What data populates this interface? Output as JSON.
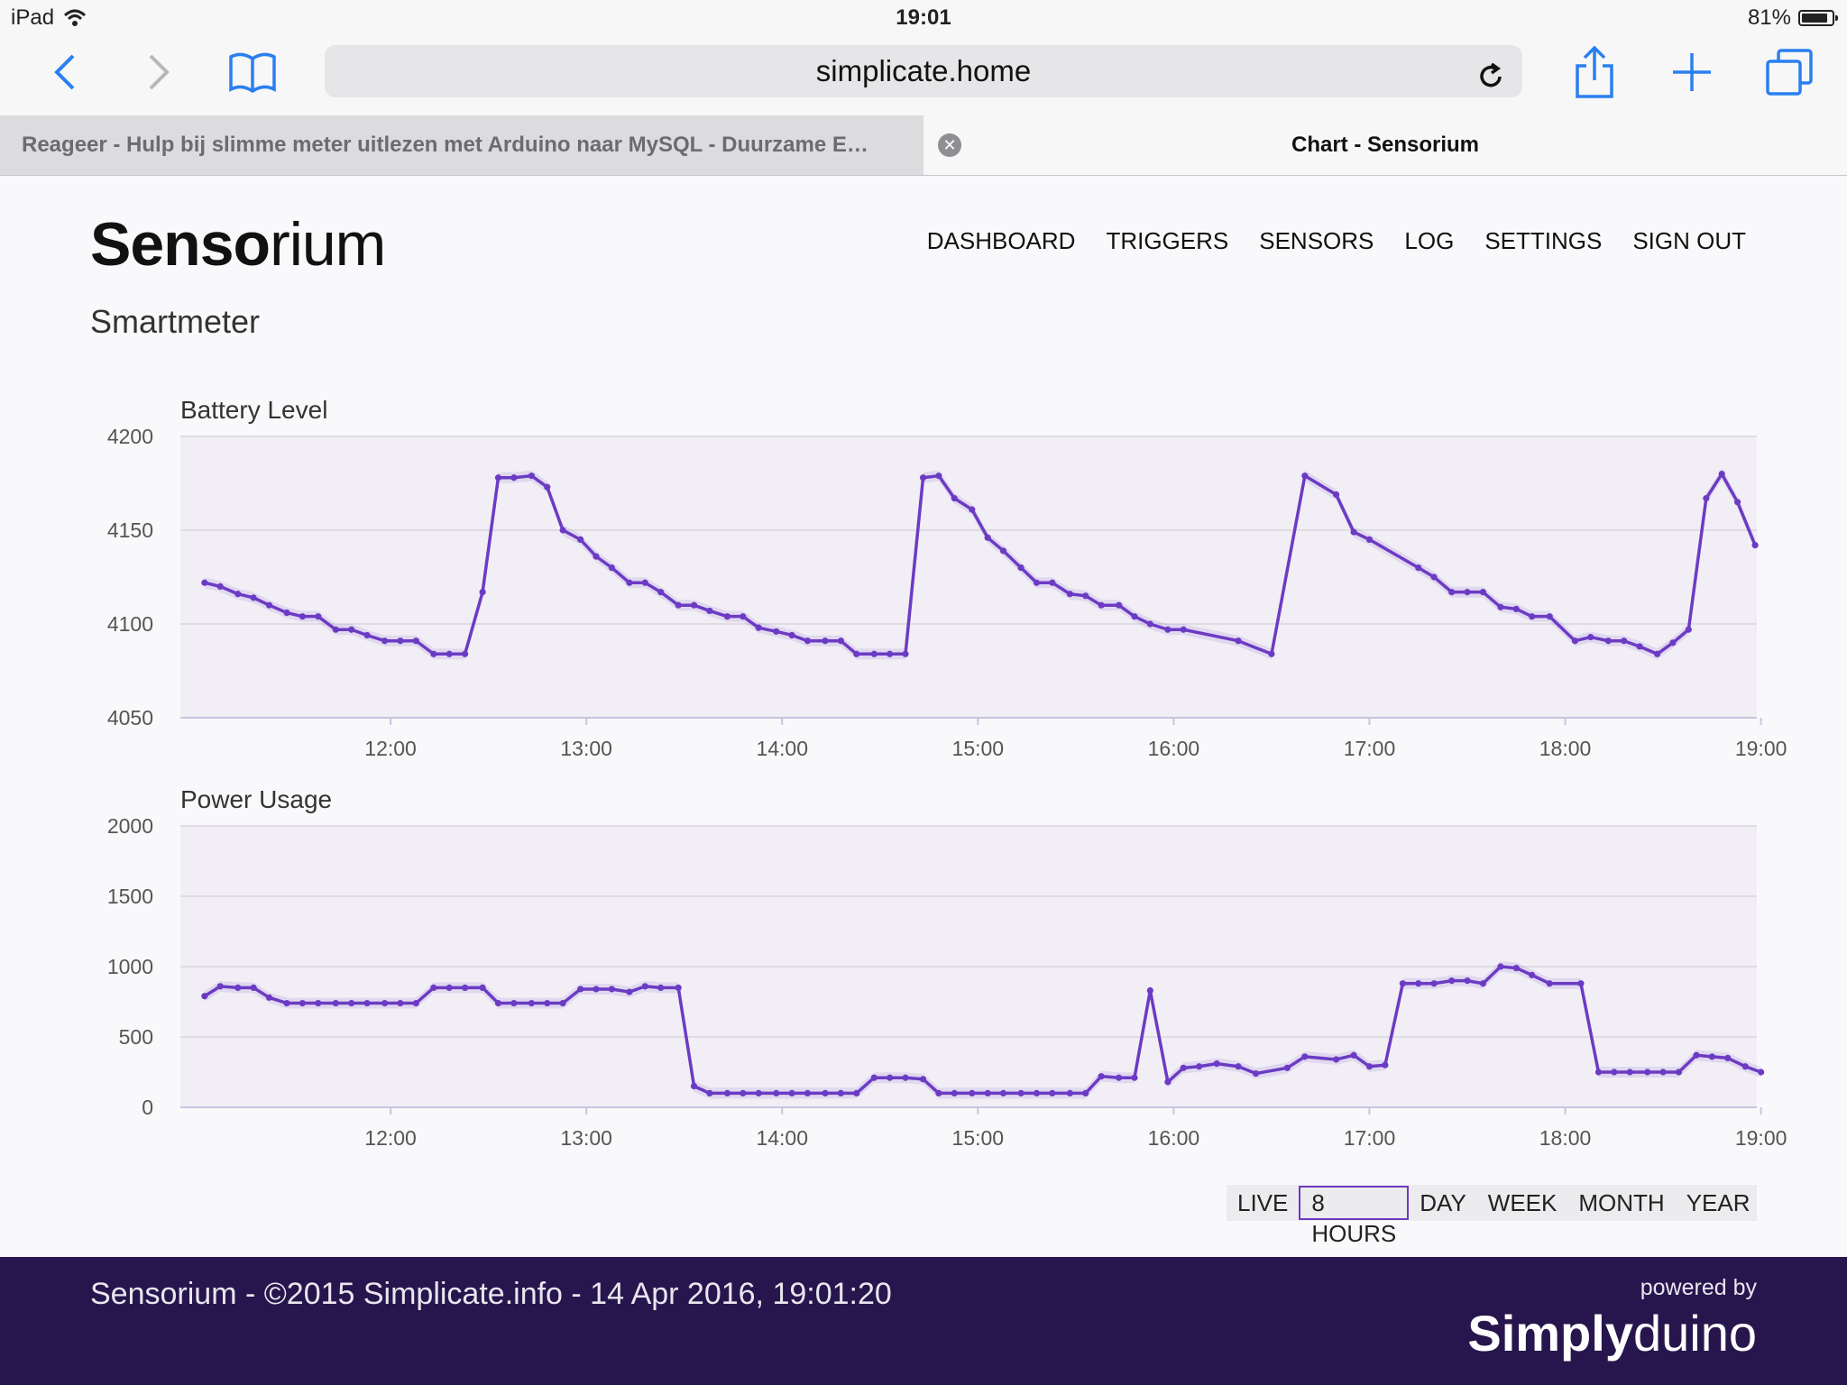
{
  "status_bar": {
    "device": "iPad",
    "time": "19:01",
    "battery": "81%"
  },
  "browser": {
    "url": "simplicate.home",
    "tabs": [
      {
        "title": "Reageer - Hulp bij slimme meter uitlezen met Arduino naar MySQL - Duurzame E…"
      },
      {
        "title": "Chart - Sensorium"
      }
    ]
  },
  "header": {
    "logo_bold": "Senso",
    "logo_light": "rium",
    "nav": [
      "DASHBOARD",
      "TRIGGERS",
      "SENSORS",
      "LOG",
      "SETTINGS",
      "SIGN OUT"
    ],
    "subtitle": "Smartmeter"
  },
  "chart_data": [
    {
      "type": "line",
      "title": "Battery Level",
      "ylim": [
        4050,
        4200
      ],
      "yticks": [
        "4200",
        "4150",
        "4100",
        "4050"
      ],
      "xlim": [
        11.0,
        19.0
      ],
      "xticks": [
        "12:00",
        "13:00",
        "14:00",
        "15:00",
        "16:00",
        "17:00",
        "18:00",
        "19:00"
      ],
      "series": [
        {
          "x": [
            11.05,
            11.13,
            11.22,
            11.3,
            11.38,
            11.47,
            11.55,
            11.63,
            11.72,
            11.8,
            11.88,
            11.97,
            12.05,
            12.13,
            12.22,
            12.3,
            12.38,
            12.47,
            12.55,
            12.63,
            12.72,
            12.8,
            12.88,
            12.97,
            13.05,
            13.13,
            13.22,
            13.3,
            13.38,
            13.47,
            13.55,
            13.63,
            13.72,
            13.8,
            13.88,
            13.97,
            14.05,
            14.13,
            14.22,
            14.3,
            14.38,
            14.47,
            14.55,
            14.63,
            14.72,
            14.8,
            14.88,
            14.97,
            15.05,
            15.13,
            15.22,
            15.3,
            15.38,
            15.47,
            15.55,
            15.63,
            15.72,
            15.8,
            15.88,
            15.97,
            16.05,
            16.33,
            16.5,
            16.67,
            16.83,
            16.92,
            17.0,
            17.25,
            17.33,
            17.42,
            17.5,
            17.58,
            17.67,
            17.75,
            17.83,
            17.92,
            18.05,
            18.13,
            18.22,
            18.3,
            18.38,
            18.47,
            18.55,
            18.63,
            18.72,
            18.8,
            18.88,
            18.97
          ],
          "y": [
            4122,
            4120,
            4116,
            4114,
            4110,
            4106,
            4104,
            4104,
            4097,
            4097,
            4094,
            4091,
            4091,
            4091,
            4084,
            4084,
            4084,
            4117,
            4178,
            4178,
            4179,
            4173,
            4150,
            4145,
            4136,
            4130,
            4122,
            4122,
            4117,
            4110,
            4110,
            4107,
            4104,
            4104,
            4098,
            4096,
            4094,
            4091,
            4091,
            4091,
            4084,
            4084,
            4084,
            4084,
            4178,
            4179,
            4167,
            4161,
            4146,
            4139,
            4130,
            4122,
            4122,
            4116,
            4115,
            4110,
            4110,
            4104,
            4100,
            4097,
            4097,
            4091,
            4084,
            4179,
            4169,
            4149,
            4145,
            4130,
            4125,
            4117,
            4117,
            4117,
            4109,
            4108,
            4104,
            4104,
            4091,
            4093,
            4091,
            4091,
            4088,
            4084,
            4090,
            4097,
            4167,
            4180,
            4165,
            4142
          ]
        }
      ]
    },
    {
      "type": "line",
      "title": "Power Usage",
      "ylim": [
        0,
        2000
      ],
      "yticks": [
        "2000",
        "1500",
        "1000",
        "500",
        "0"
      ],
      "xlim": [
        11.0,
        19.0
      ],
      "xticks": [
        "12:00",
        "13:00",
        "14:00",
        "15:00",
        "16:00",
        "17:00",
        "18:00",
        "19:00"
      ],
      "series": [
        {
          "x": [
            11.05,
            11.13,
            11.22,
            11.3,
            11.38,
            11.47,
            11.55,
            11.63,
            11.72,
            11.8,
            11.88,
            11.97,
            12.05,
            12.13,
            12.22,
            12.3,
            12.38,
            12.47,
            12.55,
            12.63,
            12.72,
            12.8,
            12.88,
            12.97,
            13.05,
            13.13,
            13.22,
            13.3,
            13.38,
            13.47,
            13.55,
            13.63,
            13.72,
            13.8,
            13.88,
            13.97,
            14.05,
            14.13,
            14.22,
            14.3,
            14.38,
            14.47,
            14.55,
            14.63,
            14.72,
            14.8,
            14.88,
            14.97,
            15.05,
            15.13,
            15.22,
            15.3,
            15.38,
            15.47,
            15.55,
            15.63,
            15.72,
            15.8,
            15.88,
            15.97,
            16.05,
            16.13,
            16.22,
            16.33,
            16.42,
            16.58,
            16.67,
            16.83,
            16.92,
            17.0,
            17.08,
            17.17,
            17.25,
            17.33,
            17.42,
            17.5,
            17.58,
            17.67,
            17.75,
            17.83,
            17.92,
            18.08,
            18.17,
            18.25,
            18.33,
            18.42,
            18.5,
            18.58,
            18.67,
            18.75,
            18.83,
            18.92,
            19.0
          ],
          "y": [
            790,
            860,
            850,
            850,
            780,
            740,
            740,
            740,
            740,
            740,
            740,
            740,
            740,
            740,
            850,
            850,
            850,
            850,
            740,
            740,
            740,
            740,
            740,
            840,
            840,
            840,
            820,
            860,
            850,
            850,
            150,
            100,
            100,
            100,
            100,
            100,
            100,
            100,
            100,
            100,
            100,
            210,
            210,
            210,
            200,
            100,
            100,
            100,
            100,
            100,
            100,
            100,
            100,
            100,
            100,
            220,
            210,
            210,
            830,
            180,
            280,
            290,
            310,
            290,
            240,
            280,
            360,
            340,
            370,
            290,
            300,
            880,
            880,
            880,
            900,
            900,
            880,
            1000,
            990,
            940,
            880,
            880,
            250,
            250,
            250,
            250,
            250,
            250,
            370,
            360,
            350,
            290,
            250
          ]
        }
      ]
    }
  ],
  "range_buttons": {
    "items": [
      "LIVE",
      "8 HOURS",
      "DAY",
      "WEEK",
      "MONTH",
      "YEAR"
    ],
    "active": "8 HOURS"
  },
  "footer": {
    "copyright": "Sensorium - ©2015 Simplicate.info - 14 Apr 2016, 19:01:20",
    "powered_by": "powered by",
    "brand_bold": "Simply",
    "brand_light": "duino"
  },
  "colors": {
    "accent": "#6c3bc4",
    "footer_bg": "#26164d",
    "plot_bg": "#f1eef5"
  }
}
